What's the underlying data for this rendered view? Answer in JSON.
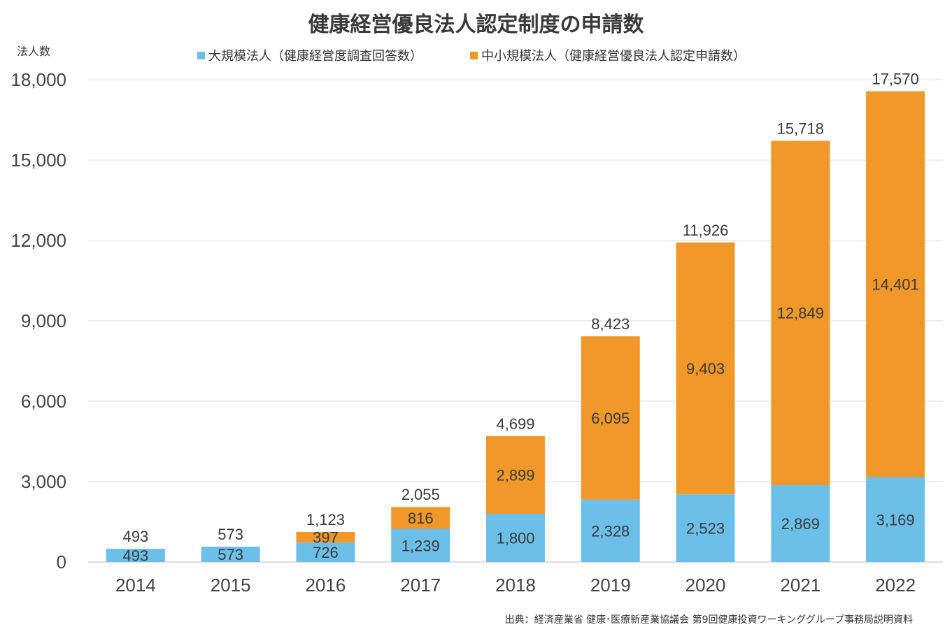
{
  "chart_data": {
    "type": "bar",
    "stacked": true,
    "title": "健康経営優良法人認定制度の申請数",
    "ylabel": "法人数",
    "xlabel": "",
    "ylim": [
      0,
      18000
    ],
    "yticks": [
      0,
      3000,
      6000,
      9000,
      12000,
      15000,
      18000
    ],
    "ytick_labels": [
      "0",
      "3,000",
      "6,000",
      "9,000",
      "12,000",
      "15,000",
      "18,000"
    ],
    "categories": [
      "2014",
      "2015",
      "2016",
      "2017",
      "2018",
      "2019",
      "2020",
      "2021",
      "2022"
    ],
    "series": [
      {
        "name": "大規模法人（健康経営度調査回答数）",
        "color": "#6bbfe8",
        "values": [
          493,
          573,
          726,
          1239,
          1800,
          2328,
          2523,
          2869,
          3169
        ],
        "labels": [
          "493",
          "573",
          "726",
          "1,239",
          "1,800",
          "2,328",
          "2,523",
          "2,869",
          "3,169"
        ]
      },
      {
        "name": "中小規模法人（健康経営優良法人認定申請数）",
        "color": "#f0982a",
        "values": [
          0,
          0,
          397,
          816,
          2899,
          6095,
          9403,
          12849,
          14401
        ],
        "labels": [
          "",
          "",
          "397",
          "816",
          "2,899",
          "6,095",
          "9,403",
          "12,849",
          "14,401"
        ]
      }
    ],
    "totals": [
      493,
      573,
      1123,
      2055,
      4699,
      8423,
      11926,
      15718,
      17570
    ],
    "total_labels": [
      "493",
      "573",
      "1,123",
      "2,055",
      "4,699",
      "8,423",
      "11,926",
      "15,718",
      "17,570"
    ],
    "grid": true,
    "legend_position": "top"
  },
  "source": "出典：経済産業省 健康･医療新産業協議会 第9回健康投資ワーキンググループ事務局説明資料"
}
